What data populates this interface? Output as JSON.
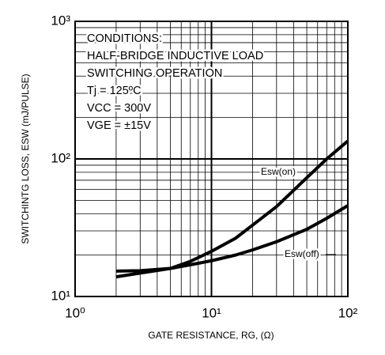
{
  "chart_data": {
    "type": "line",
    "y_label": "SWITCHINTG LOSS, ESW (mJ/PULSE)",
    "x_label": "GATE RESISTANCE, RG, (Ω)",
    "annotations": [
      "CONDITIONS:",
      "HALF-BRIDGE INDUCTIVE LOAD",
      "SWITCHING OPERATION",
      "Tj = 125ºC",
      "VCC = 300V",
      "VGE = ±15V"
    ],
    "x": [
      2,
      3,
      5,
      7,
      10,
      15,
      20,
      30,
      50,
      70,
      100
    ],
    "series": [
      {
        "name": "Esw(on)",
        "color": "#000000",
        "values": [
          15.3,
          15.4,
          16.0,
          18,
          21.3,
          26.5,
          33,
          45,
          73,
          100,
          135
        ]
      },
      {
        "name": "Esw(off)",
        "color": "#000000",
        "values": [
          13.9,
          14.8,
          16.0,
          17,
          18.2,
          20,
          21.8,
          25,
          30.8,
          37,
          45.8
        ]
      }
    ],
    "xlim": [
      1,
      100
    ],
    "ylim": [
      10,
      1000
    ],
    "xticks": [
      {
        "value": 1,
        "label": "10⁰"
      },
      {
        "value": 10,
        "label": "10¹"
      },
      {
        "value": 100,
        "label": "10²"
      }
    ],
    "yticks": [
      {
        "value": 10,
        "label": "10¹"
      },
      {
        "value": 100,
        "label": "10²"
      },
      {
        "value": 1000,
        "label": "10³"
      }
    ],
    "log_x": true,
    "log_y": true,
    "grid": true
  }
}
